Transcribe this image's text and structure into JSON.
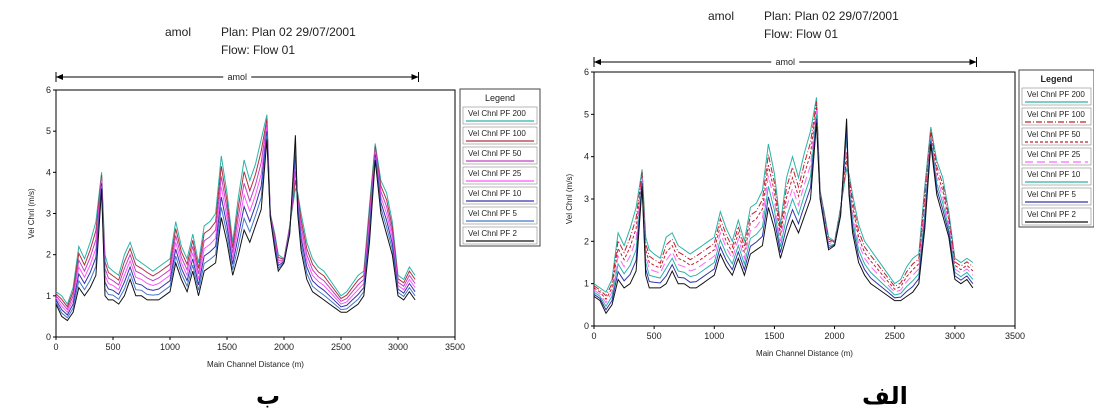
{
  "chart_data": [
    {
      "id": "b",
      "type": "line",
      "title_project": "amol",
      "title_plan": "Plan: Plan 02    29/07/2001",
      "title_flow": "Flow: Flow 01",
      "reach_label": "amol",
      "xlabel": "Main Channel Distance (m)",
      "ylabel": "Vel Chnl (m/s)",
      "xlim": [
        0,
        3500
      ],
      "ylim": [
        0,
        6
      ],
      "xticks": [
        0,
        500,
        1000,
        1500,
        2000,
        2500,
        3000,
        3500
      ],
      "yticks": [
        0,
        1,
        2,
        3,
        4,
        5,
        6
      ],
      "legend_title": "Legend",
      "legend_placement": "right",
      "caption": "ب",
      "series": [
        {
          "name": "Vel Chnl PF 200",
          "color": "#2bb3a8",
          "dash": "",
          "scale": 1.0
        },
        {
          "name": "Vel Chnl PF 100",
          "color": "#b03040",
          "dash": "",
          "scale": 0.94
        },
        {
          "name": "Vel Chnl PF 50",
          "color": "#c040c0",
          "dash": "",
          "scale": 0.88
        },
        {
          "name": "Vel Chnl PF 25",
          "color": "#ff55ff",
          "dash": "",
          "scale": 0.81
        },
        {
          "name": "Vel Chnl PF 10",
          "color": "#3333aa",
          "dash": "",
          "scale": 0.73
        },
        {
          "name": "Vel Chnl PF 5",
          "color": "#4477cc",
          "dash": "",
          "scale": 0.66
        },
        {
          "name": "Vel Chnl PF 2",
          "color": "#111111",
          "dash": "",
          "scale": 0.58
        }
      ],
      "x": [
        0,
        50,
        100,
        150,
        200,
        250,
        300,
        350,
        400,
        430,
        460,
        500,
        550,
        600,
        650,
        700,
        750,
        800,
        850,
        900,
        950,
        1000,
        1050,
        1100,
        1150,
        1200,
        1250,
        1300,
        1350,
        1400,
        1450,
        1500,
        1550,
        1600,
        1650,
        1700,
        1750,
        1800,
        1850,
        1880,
        1920,
        1950,
        2000,
        2050,
        2100,
        2120,
        2150,
        2200,
        2250,
        2300,
        2350,
        2400,
        2450,
        2500,
        2550,
        2600,
        2650,
        2700,
        2750,
        2800,
        2850,
        2900,
        2950,
        3000,
        3050,
        3100,
        3150
      ],
      "y_top": [
        1.1,
        1.0,
        0.8,
        1.2,
        2.2,
        1.9,
        2.3,
        2.8,
        4.0,
        2.0,
        1.7,
        1.6,
        1.5,
        2.0,
        2.3,
        1.9,
        1.8,
        1.7,
        1.6,
        1.7,
        1.8,
        1.9,
        2.8,
        2.2,
        1.9,
        2.5,
        1.8,
        2.7,
        2.8,
        3.0,
        4.4,
        3.5,
        2.3,
        3.4,
        4.3,
        3.8,
        4.2,
        4.8,
        5.4,
        3.0,
        2.5,
        2.0,
        1.9,
        2.7,
        3.6,
        3.5,
        3.0,
        2.3,
        1.9,
        1.7,
        1.6,
        1.4,
        1.2,
        1.0,
        1.1,
        1.3,
        1.5,
        1.6,
        3.2,
        4.7,
        3.8,
        3.5,
        2.8,
        1.5,
        1.4,
        1.7,
        1.5
      ],
      "y_bottom": [
        0.8,
        0.5,
        0.4,
        0.6,
        1.2,
        1.0,
        1.2,
        1.5,
        3.6,
        1.0,
        0.9,
        0.9,
        0.8,
        1.0,
        1.4,
        1.0,
        1.0,
        0.9,
        0.9,
        0.9,
        1.0,
        1.1,
        1.8,
        1.4,
        1.1,
        1.6,
        1.0,
        1.6,
        1.7,
        1.8,
        2.9,
        2.3,
        1.5,
        2.0,
        2.6,
        2.3,
        2.7,
        3.1,
        4.8,
        2.9,
        2.1,
        1.6,
        1.8,
        2.5,
        4.9,
        3.0,
        2.1,
        1.4,
        1.1,
        1.0,
        0.9,
        0.8,
        0.7,
        0.6,
        0.6,
        0.7,
        0.8,
        1.0,
        2.3,
        4.3,
        3.0,
        2.5,
        2.0,
        1.0,
        0.9,
        1.1,
        0.9
      ]
    },
    {
      "id": "a",
      "type": "line",
      "title_project": "amol",
      "title_plan": "Plan: Plan 02    29/07/2001",
      "title_flow": "Flow: Flow 01",
      "reach_label": "amol",
      "xlabel": "Main Channel Distance (m)",
      "ylabel": "Vel Chnl (m/s)",
      "xlim": [
        0,
        3500
      ],
      "ylim": [
        0,
        6
      ],
      "xticks": [
        0,
        500,
        1000,
        1500,
        2000,
        2500,
        3000,
        3500
      ],
      "yticks": [
        0,
        1,
        2,
        3,
        4,
        5,
        6
      ],
      "legend_title": "Legend",
      "legend_placement": "right",
      "caption": "الف",
      "series": [
        {
          "name": "Vel Chnl PF 200",
          "color": "#2bb3a8",
          "dash": "",
          "scale": 1.0
        },
        {
          "name": "Vel Chnl PF 100",
          "color": "#c02030",
          "dash": "6,2,1,2",
          "scale": 0.93
        },
        {
          "name": "Vel Chnl PF 50",
          "color": "#c02030",
          "dash": "3,2",
          "scale": 0.86
        },
        {
          "name": "Vel Chnl PF 25",
          "color": "#ff66ff",
          "dash": "8,4",
          "scale": 0.79
        },
        {
          "name": "Vel Chnl PF 10",
          "color": "#2bb3a8",
          "dash": "",
          "scale": 0.72
        },
        {
          "name": "Vel Chnl PF 5",
          "color": "#3333aa",
          "dash": "",
          "scale": 0.65
        },
        {
          "name": "Vel Chnl PF 2",
          "color": "#111111",
          "dash": "",
          "scale": 0.57
        }
      ],
      "x": [
        0,
        50,
        100,
        150,
        200,
        250,
        300,
        350,
        400,
        430,
        460,
        500,
        550,
        600,
        650,
        700,
        750,
        800,
        850,
        900,
        950,
        1000,
        1050,
        1100,
        1150,
        1200,
        1250,
        1300,
        1350,
        1400,
        1450,
        1500,
        1550,
        1600,
        1650,
        1700,
        1750,
        1800,
        1850,
        1880,
        1920,
        1950,
        2000,
        2050,
        2100,
        2120,
        2150,
        2200,
        2250,
        2300,
        2350,
        2400,
        2450,
        2500,
        2550,
        2600,
        2650,
        2700,
        2750,
        2800,
        2850,
        2900,
        2950,
        3000,
        3050,
        3100,
        3150
      ],
      "y_top": [
        1.0,
        0.9,
        0.8,
        1.1,
        2.2,
        1.9,
        2.3,
        2.8,
        3.7,
        2.1,
        1.8,
        1.7,
        1.6,
        2.1,
        2.2,
        1.9,
        1.8,
        1.7,
        1.8,
        1.9,
        2.0,
        2.1,
        2.7,
        2.3,
        2.0,
        2.5,
        2.0,
        2.8,
        2.9,
        3.2,
        4.3,
        3.6,
        2.4,
        3.5,
        4.0,
        3.5,
        4.1,
        4.6,
        5.4,
        3.2,
        2.6,
        2.1,
        2.0,
        2.8,
        3.7,
        3.6,
        3.1,
        2.4,
        2.0,
        1.8,
        1.6,
        1.4,
        1.2,
        1.0,
        1.1,
        1.4,
        1.6,
        1.7,
        3.3,
        4.7,
        3.9,
        3.5,
        2.7,
        1.6,
        1.5,
        1.6,
        1.5
      ],
      "y_bottom": [
        0.7,
        0.6,
        0.3,
        0.5,
        1.1,
        0.9,
        1.0,
        1.3,
        3.3,
        1.2,
        0.9,
        0.9,
        0.9,
        1.0,
        1.3,
        1.0,
        1.0,
        0.9,
        0.9,
        1.0,
        1.1,
        1.2,
        1.7,
        1.4,
        1.2,
        1.6,
        1.2,
        1.7,
        1.8,
        1.9,
        2.8,
        2.3,
        1.6,
        2.1,
        2.5,
        2.2,
        2.6,
        3.0,
        4.8,
        3.0,
        2.3,
        1.8,
        1.9,
        2.6,
        4.9,
        3.1,
        2.2,
        1.5,
        1.2,
        1.0,
        0.9,
        0.8,
        0.7,
        0.6,
        0.6,
        0.7,
        0.8,
        1.0,
        2.3,
        4.3,
        3.1,
        2.6,
        2.1,
        1.1,
        1.0,
        1.1,
        0.9
      ]
    }
  ]
}
